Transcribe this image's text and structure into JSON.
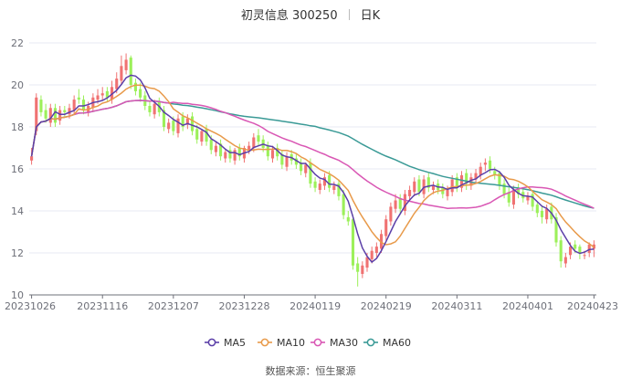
{
  "header": {
    "stock_name": "初灵信息 300250",
    "period": "日K"
  },
  "footer": {
    "label": "数据来源：",
    "source": "恒生聚源"
  },
  "colors": {
    "up": "#f07272",
    "down": "#9cf05a",
    "MA5": "#5b3fa8",
    "MA10": "#e89a4a",
    "MA30": "#d957b4",
    "MA60": "#3a9a96",
    "grid": "#e7eaf3",
    "axis": "#6e7079"
  },
  "chart_data": {
    "type": "candlestick",
    "title": "初灵信息 300250 日K",
    "ylim": [
      10,
      22
    ],
    "yticks": [
      10,
      12,
      14,
      16,
      18,
      20,
      22
    ],
    "x_tick_labels": [
      "20231026",
      "20231116",
      "20231207",
      "20231228",
      "20240119",
      "20240219",
      "20240311",
      "20240401",
      "20240423"
    ],
    "x_tick_index": [
      0,
      15,
      30,
      45,
      60,
      75,
      90,
      105,
      119
    ],
    "legend": {
      "placement": "bottom-center",
      "items": [
        "MA5",
        "MA10",
        "MA30",
        "MA60"
      ]
    },
    "close": [
      16.6,
      19.4,
      18.7,
      18.4,
      18.9,
      18.2,
      18.8,
      18.7,
      18.9,
      19.3,
      19.3,
      18.8,
      19.0,
      19.4,
      19.5,
      19.6,
      19.4,
      19.9,
      20.3,
      20.9,
      21.2,
      20.0,
      19.7,
      19.4,
      19.0,
      18.7,
      19.1,
      18.7,
      18.0,
      18.2,
      17.8,
      18.4,
      18.0,
      18.4,
      17.8,
      17.4,
      17.8,
      17.3,
      16.9,
      17.1,
      16.6,
      16.8,
      16.5,
      16.9,
      16.6,
      17.0,
      17.1,
      17.5,
      17.3,
      17.0,
      16.6,
      16.9,
      16.6,
      16.2,
      16.6,
      16.4,
      16.2,
      15.9,
      16.2,
      15.3,
      15.1,
      15.3,
      15.6,
      15.1,
      15.2,
      14.7,
      13.8,
      13.5,
      11.4,
      11.1,
      11.4,
      11.8,
      12.1,
      12.3,
      12.9,
      13.6,
      14.2,
      14.5,
      14.1,
      14.8,
      15.0,
      15.4,
      14.9,
      15.5,
      15.1,
      15.2,
      15.0,
      14.8,
      15.0,
      15.5,
      15.2,
      15.7,
      15.3,
      15.6,
      15.8,
      16.1,
      16.3,
      16.0,
      15.7,
      15.2,
      14.8,
      14.4,
      15.0,
      14.8,
      14.6,
      14.7,
      14.2,
      13.9,
      13.7,
      14.1,
      13.6,
      12.5,
      11.6,
      11.8,
      12.3,
      12.2,
      12.0,
      11.9,
      12.4,
      12.4
    ],
    "open": [
      16.4,
      17.8,
      19.3,
      18.8,
      18.2,
      18.9,
      18.3,
      18.8,
      18.6,
      18.8,
      19.4,
      19.3,
      18.7,
      18.9,
      19.3,
      19.5,
      19.7,
      19.3,
      19.8,
      20.2,
      20.7,
      21.3,
      20.1,
      19.8,
      19.5,
      19.0,
      18.6,
      19.2,
      18.8,
      17.9,
      18.3,
      17.7,
      18.5,
      18.1,
      18.5,
      17.9,
      17.3,
      17.9,
      17.4,
      16.8,
      17.2,
      16.5,
      16.9,
      16.4,
      17.0,
      16.5,
      16.9,
      17.0,
      17.6,
      17.4,
      17.1,
      16.5,
      17.0,
      16.7,
      16.1,
      16.7,
      16.5,
      16.3,
      15.8,
      16.3,
      15.4,
      15.0,
      15.2,
      15.7,
      15.0,
      15.3,
      14.8,
      13.7,
      13.6,
      11.5,
      11.0,
      11.3,
      11.7,
      12.0,
      12.2,
      12.8,
      13.5,
      14.1,
      14.6,
      14.0,
      14.7,
      14.9,
      15.5,
      14.8,
      15.6,
      15.0,
      15.3,
      15.1,
      14.7,
      14.9,
      15.6,
      15.1,
      15.8,
      15.2,
      15.5,
      15.7,
      16.2,
      16.4,
      15.9,
      15.8,
      15.3,
      14.9,
      14.3,
      15.1,
      14.9,
      14.5,
      14.8,
      14.3,
      14.0,
      13.6,
      14.2,
      13.7,
      12.6,
      11.5,
      11.9,
      12.4,
      12.3,
      11.9,
      12.0,
      12.2
    ],
    "high": [
      17.0,
      19.6,
      19.5,
      19.1,
      19.1,
      19.1,
      19.0,
      19.0,
      19.1,
      19.5,
      19.8,
      19.5,
      19.2,
      19.6,
      19.8,
      19.9,
      19.9,
      20.2,
      20.6,
      21.4,
      21.5,
      21.4,
      20.3,
      20.1,
      19.7,
      19.2,
      19.3,
      19.4,
      19.0,
      18.4,
      18.5,
      18.6,
      18.7,
      18.6,
      18.7,
      18.1,
      17.9,
      18.1,
      17.6,
      17.3,
      17.4,
      16.9,
      17.1,
      17.0,
      17.2,
      17.1,
      17.3,
      17.7,
      17.9,
      17.6,
      17.3,
      17.1,
      17.2,
      16.9,
      16.8,
      16.9,
      16.7,
      16.5,
      16.3,
      16.5,
      15.6,
      15.5,
      15.8,
      15.9,
      15.4,
      15.5,
      15.0,
      14.0,
      13.8,
      11.8,
      11.6,
      12.0,
      12.3,
      12.5,
      13.1,
      13.8,
      14.4,
      14.8,
      14.8,
      15.0,
      15.2,
      15.6,
      15.7,
      15.7,
      15.8,
      15.4,
      15.5,
      15.3,
      15.2,
      15.7,
      15.8,
      15.9,
      16.0,
      15.8,
      16.0,
      16.3,
      16.5,
      16.6,
      16.1,
      15.9,
      15.5,
      15.1,
      15.2,
      15.3,
      15.1,
      14.9,
      14.9,
      14.4,
      14.2,
      14.3,
      14.4,
      13.9,
      12.8,
      12.0,
      12.5,
      12.6,
      12.4,
      12.1,
      12.5,
      12.6
    ],
    "low": [
      16.2,
      17.6,
      18.5,
      18.2,
      18.0,
      18.0,
      18.1,
      18.5,
      18.4,
      18.6,
      19.1,
      18.6,
      18.5,
      18.7,
      19.1,
      19.3,
      19.2,
      19.1,
      19.6,
      20.0,
      20.5,
      19.8,
      19.5,
      19.2,
      18.8,
      18.5,
      18.4,
      18.5,
      17.8,
      17.7,
      17.6,
      17.5,
      17.8,
      17.9,
      17.6,
      17.2,
      17.1,
      17.1,
      16.7,
      16.6,
      16.4,
      16.3,
      16.3,
      16.2,
      16.4,
      16.3,
      16.7,
      16.8,
      17.1,
      16.8,
      16.4,
      16.3,
      16.4,
      16.0,
      15.9,
      16.2,
      16.0,
      15.7,
      15.6,
      15.1,
      14.9,
      14.8,
      15.0,
      14.9,
      14.8,
      14.5,
      13.6,
      13.3,
      11.2,
      10.4,
      10.8,
      11.1,
      11.5,
      11.8,
      12.0,
      12.6,
      13.3,
      13.9,
      13.9,
      13.8,
      14.5,
      14.7,
      14.7,
      14.6,
      14.9,
      14.8,
      14.8,
      14.6,
      14.5,
      14.7,
      14.9,
      14.9,
      15.0,
      15.0,
      15.3,
      15.5,
      15.9,
      15.8,
      15.5,
      15.0,
      14.6,
      14.2,
      14.1,
      14.6,
      14.4,
      14.3,
      14.0,
      13.7,
      13.4,
      13.4,
      13.4,
      12.3,
      11.3,
      11.3,
      11.7,
      12.0,
      11.7,
      11.7,
      11.8,
      11.8
    ]
  }
}
